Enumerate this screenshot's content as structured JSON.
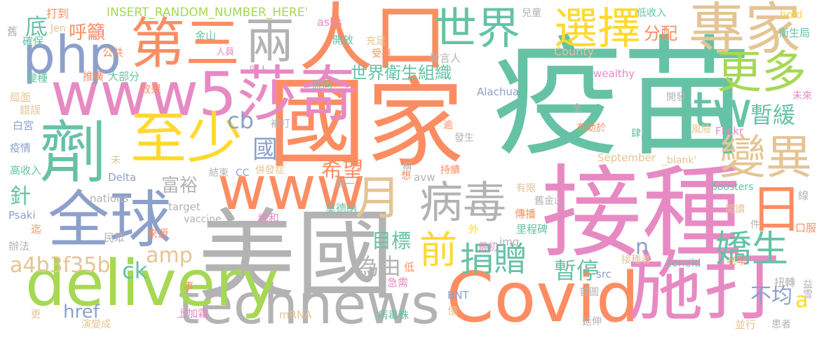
{
  "words": [
    {
      "text": "疫苗",
      "color": "#66c2a5"
    },
    {
      "text": "接種",
      "color": "#e78ac3"
    },
    {
      "text": "國家",
      "color": "#fc8d62"
    },
    {
      "text": "美國",
      "color": "#b3b3b3"
    },
    {
      "text": "人口",
      "color": "#fc8d62"
    },
    {
      "text": "technews",
      "color": "#b3b3b3"
    },
    {
      "text": "Covid",
      "color": "#fc8d62"
    },
    {
      "text": "施打",
      "color": "#e78ac3"
    },
    {
      "text": "全球",
      "color": "#8da0cb"
    },
    {
      "text": "劑",
      "color": "#66c2a5"
    },
    {
      "text": "delivery",
      "color": "#a6d854"
    },
    {
      "text": "www",
      "color": "#fc8d62"
    },
    {
      "text": "www5莎奇",
      "color": "#e78ac3"
    },
    {
      "text": "第三",
      "color": "#fc8d62"
    },
    {
      "text": "至少",
      "color": "#ffd92f"
    },
    {
      "text": "php",
      "color": "#8da0cb"
    },
    {
      "text": "兩",
      "color": "#b3b3b3"
    },
    {
      "text": "專家",
      "color": "#e5c494"
    },
    {
      "text": "選擇",
      "color": "#ffd92f"
    },
    {
      "text": "世界",
      "color": "#66c2a5"
    },
    {
      "text": "更多",
      "color": "#a6d854"
    },
    {
      "text": "tw",
      "color": "#66c2a5"
    },
    {
      "text": "變異",
      "color": "#e5c494"
    },
    {
      "text": "日",
      "color": "#fc8d62"
    },
    {
      "text": "病毒",
      "color": "#b3b3b3"
    },
    {
      "text": "月",
      "color": "#e5c494"
    },
    {
      "text": "前",
      "color": "#ffd92f"
    },
    {
      "text": "嬌生",
      "color": "#66c2a5"
    },
    {
      "text": "捐贈",
      "color": "#66c2a5"
    },
    {
      "text": "世界衛生組織",
      "color": "#66c2a5"
    },
    {
      "text": "國",
      "color": "#8da0cb"
    },
    {
      "text": "暫緩",
      "color": "#66c2a5"
    },
    {
      "text": "希望",
      "color": "#fc8d62"
    },
    {
      "text": "富裕",
      "color": "#b3b3b3"
    },
    {
      "text": "目標",
      "color": "#66c2a5"
    },
    {
      "text": "暫停",
      "color": "#66c2a5"
    },
    {
      "text": "為由",
      "color": "#b3b3b3"
    },
    {
      "text": "a4b3f35b",
      "color": "#e5c494"
    },
    {
      "text": "amp",
      "color": "#e5c494"
    },
    {
      "text": "cb",
      "color": "#8da0cb"
    },
    {
      "text": "ck",
      "color": "#66c2a5"
    },
    {
      "text": "href",
      "color": "#8da0cb"
    },
    {
      "text": "不均",
      "color": "#8da0cb"
    },
    {
      "text": "分配",
      "color": "#fc8d62"
    },
    {
      "text": "呼籲",
      "color": "#fc8d62"
    },
    {
      "text": "底",
      "color": "#66c2a5"
    },
    {
      "text": "n",
      "color": "#8da0cb"
    },
    {
      "text": "a",
      "color": "#ffd92f"
    },
    {
      "text": "針",
      "color": "#66c2a5"
    },
    {
      "text": "INSERT_RANDOM_NUMBER_HERE'",
      "color": "#a6d854"
    },
    {
      "text": "打到",
      "color": "#fc8d62"
    },
    {
      "text": "Jen",
      "color": "#e5c494"
    },
    {
      "text": "金山",
      "color": "#66c2a5"
    },
    {
      "text": "人員",
      "color": "#e78ac3"
    },
    {
      "text": "公共",
      "color": "#fc8d62"
    },
    {
      "text": "推廣",
      "color": "#fc8d62"
    },
    {
      "text": "大部分",
      "color": "#66c2a5"
    },
    {
      "text": "變種",
      "color": "#66c2a5"
    },
    {
      "text": "效果",
      "color": "#fc8d62"
    },
    {
      "text": "國人",
      "color": "#e78ac3"
    },
    {
      "text": "流向",
      "color": "#66c2a5"
    },
    {
      "text": "asks",
      "color": "#e78ac3"
    },
    {
      "text": "開放",
      "color": "#66c2a5"
    },
    {
      "text": "充足",
      "color": "#e5c494"
    },
    {
      "text": "受惠",
      "color": "#fc8d62"
    },
    {
      "text": "發言人",
      "color": "#b3b3b3"
    },
    {
      "text": "兒童",
      "color": "#b3b3b3"
    },
    {
      "text": "County",
      "color": "#e5c494"
    },
    {
      "text": "wealthy",
      "color": "#e78ac3"
    },
    {
      "text": "Alachua",
      "color": "#8da0cb"
    },
    {
      "text": "低收入",
      "color": "#66c2a5"
    },
    {
      "text": "hold",
      "color": "#ffd92f"
    },
    {
      "text": "衛生局",
      "color": "#66c2a5"
    },
    {
      "text": "舊",
      "color": "#b3b3b3"
    },
    {
      "text": "確保",
      "color": "#66c2a5"
    },
    {
      "text": "局面",
      "color": "#e5c494"
    },
    {
      "text": "錯誤",
      "color": "#e5c494"
    },
    {
      "text": "白宮",
      "color": "#8da0cb"
    },
    {
      "text": "疫情",
      "color": "#8da0cb"
    },
    {
      "text": "高收入",
      "color": "#66c2a5"
    },
    {
      "text": "Psaki",
      "color": "#8da0cb"
    },
    {
      "text": "迄",
      "color": "#fc8d62"
    },
    {
      "text": "辦法",
      "color": "#b3b3b3"
    },
    {
      "text": "民眾",
      "color": "#b3b3b3"
    },
    {
      "text": "更",
      "color": "#e5c494"
    },
    {
      "text": "演變成",
      "color": "#e5c494"
    },
    {
      "text": "事",
      "color": "#fc8d62"
    },
    {
      "text": "上加霜",
      "color": "#e78ac3"
    },
    {
      "text": "mRNA",
      "color": "#e5c494"
    },
    {
      "text": "病毒株",
      "color": "#66c2a5"
    },
    {
      "text": "急需",
      "color": "#e78ac3"
    },
    {
      "text": "低",
      "color": "#fc8d62"
    },
    {
      "text": "BNT",
      "color": "#8da0cb"
    },
    {
      "text": "億",
      "color": "#e5c494"
    },
    {
      "text": "首圖",
      "color": "#b3b3b3"
    },
    {
      "text": "延伸",
      "color": "#b3b3b3"
    },
    {
      "text": "並行",
      "color": "#e5c494"
    },
    {
      "text": "患者",
      "color": "#b3b3b3"
    },
    {
      "text": "益雪",
      "color": "#b3b3b3"
    },
    {
      "text": "扭轉",
      "color": "#b3b3b3"
    },
    {
      "text": "老年",
      "color": "#fc8d62"
    },
    {
      "text": "口服",
      "color": "#fc8d62"
    },
    {
      "text": "件",
      "color": "#b3b3b3"
    },
    {
      "text": "閱讀",
      "color": "#e5c494"
    },
    {
      "text": "線",
      "color": "#b3b3b3"
    },
    {
      "text": "boosters",
      "color": "#66c2a5"
    },
    {
      "text": "zoneid",
      "color": "#66c2a5"
    },
    {
      "text": "src",
      "color": "#8da0cb"
    },
    {
      "text": "接種者",
      "color": "#e5c494"
    },
    {
      "text": "里程碑",
      "color": "#66c2a5"
    },
    {
      "text": "最初",
      "color": "#e78ac3"
    },
    {
      "text": "img",
      "color": "#b3b3b3"
    },
    {
      "text": "外",
      "color": "#ffd92f"
    },
    {
      "text": "傳播",
      "color": "#fc8d62"
    },
    {
      "text": "舊金山",
      "color": "#b3b3b3"
    },
    {
      "text": "有限",
      "color": "#e5c494"
    },
    {
      "text": "莫德納",
      "color": "#66c2a5"
    },
    {
      "text": "總和",
      "color": "#e78ac3"
    },
    {
      "text": "來源",
      "color": "#fc8d62"
    },
    {
      "text": "vaccine",
      "color": "#b3b3b3"
    },
    {
      "text": "target",
      "color": "#b3b3b3"
    },
    {
      "text": "nations",
      "color": "#b3b3b3"
    },
    {
      "text": "Delta",
      "color": "#8da0cb"
    },
    {
      "text": "第一",
      "color": "#b3b3b3"
    },
    {
      "text": "avw",
      "color": "#b3b3b3"
    },
    {
      "text": "持續",
      "color": "#fc8d62"
    },
    {
      "text": "想",
      "color": "#fc8d62"
    },
    {
      "text": "結束",
      "color": "#b3b3b3"
    },
    {
      "text": "CC",
      "color": "#8da0cb"
    },
    {
      "text": "併發症",
      "color": "#e5c494"
    },
    {
      "text": "September",
      "color": "#e5c494"
    },
    {
      "text": "_blank'",
      "color": "#e5c494"
    },
    {
      "text": "未",
      "color": "#e5c494"
    },
    {
      "text": "補打",
      "color": "#b3b3b3"
    },
    {
      "text": "逾",
      "color": "#fc8d62"
    },
    {
      "text": "發生",
      "color": "#b3b3b3"
    },
    {
      "text": "有助於",
      "color": "#fc8d62"
    },
    {
      "text": "肆虐",
      "color": "#66c2a5"
    },
    {
      "text": "全",
      "color": "#b3b3b3"
    },
    {
      "text": "開發",
      "color": "#b3b3b3"
    },
    {
      "text": "風險",
      "color": "#e5c494"
    },
    {
      "text": "Flickr",
      "color": "#e78ac3"
    },
    {
      "text": "未來",
      "color": "#e78ac3"
    },
    {
      "text": "稱",
      "color": "#b3b3b3"
    }
  ]
}
